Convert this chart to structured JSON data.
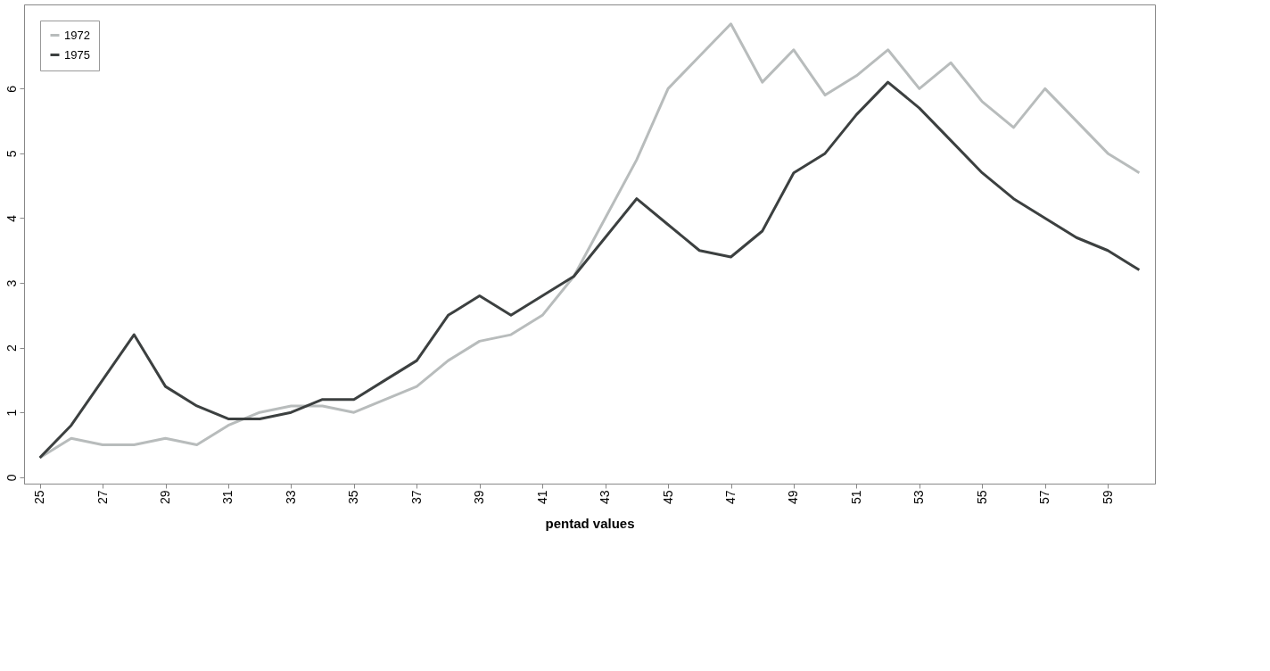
{
  "chart_data": {
    "type": "line",
    "xlabel": "pentad values",
    "x": [
      25,
      26,
      27,
      28,
      29,
      30,
      31,
      32,
      33,
      34,
      35,
      36,
      37,
      38,
      39,
      40,
      41,
      42,
      43,
      44,
      45,
      46,
      47,
      48,
      49,
      50,
      51,
      52,
      53,
      54,
      55,
      56,
      57,
      58,
      59,
      60
    ],
    "series": [
      {
        "name": "1972",
        "color": "#b8bcbc",
        "values": [
          0.3,
          0.6,
          0.5,
          0.5,
          0.6,
          0.5,
          0.8,
          1.0,
          1.1,
          1.1,
          1.0,
          1.2,
          1.4,
          1.8,
          2.1,
          2.2,
          2.5,
          3.1,
          4.0,
          4.9,
          6.0,
          6.5,
          7.0,
          6.1,
          6.6,
          5.9,
          6.2,
          6.6,
          6.0,
          6.4,
          5.8,
          5.4,
          6.0,
          5.5,
          5.0,
          4.7
        ]
      },
      {
        "name": "1975",
        "color": "#3c4040",
        "values": [
          0.3,
          0.8,
          1.5,
          2.2,
          1.4,
          1.1,
          0.9,
          0.9,
          1.0,
          1.2,
          1.2,
          1.5,
          1.8,
          2.5,
          2.8,
          2.5,
          2.8,
          3.1,
          3.7,
          4.3,
          3.9,
          3.5,
          3.4,
          3.8,
          4.7,
          5.0,
          5.6,
          6.1,
          5.7,
          5.2,
          4.7,
          4.3,
          4.0,
          3.7,
          3.5,
          3.2
        ]
      }
    ],
    "xlim": [
      24.5,
      60.5
    ],
    "xticks": [
      25,
      27,
      29,
      31,
      33,
      35,
      37,
      39,
      41,
      43,
      45,
      47,
      49,
      51,
      53,
      55,
      57,
      59
    ],
    "ylim": [
      -0.1,
      7.3
    ],
    "yticks": [
      0,
      1,
      2,
      3,
      4,
      5,
      6
    ],
    "grid": false,
    "legend": "top left",
    "marker": "none",
    "line_style": "solid"
  }
}
